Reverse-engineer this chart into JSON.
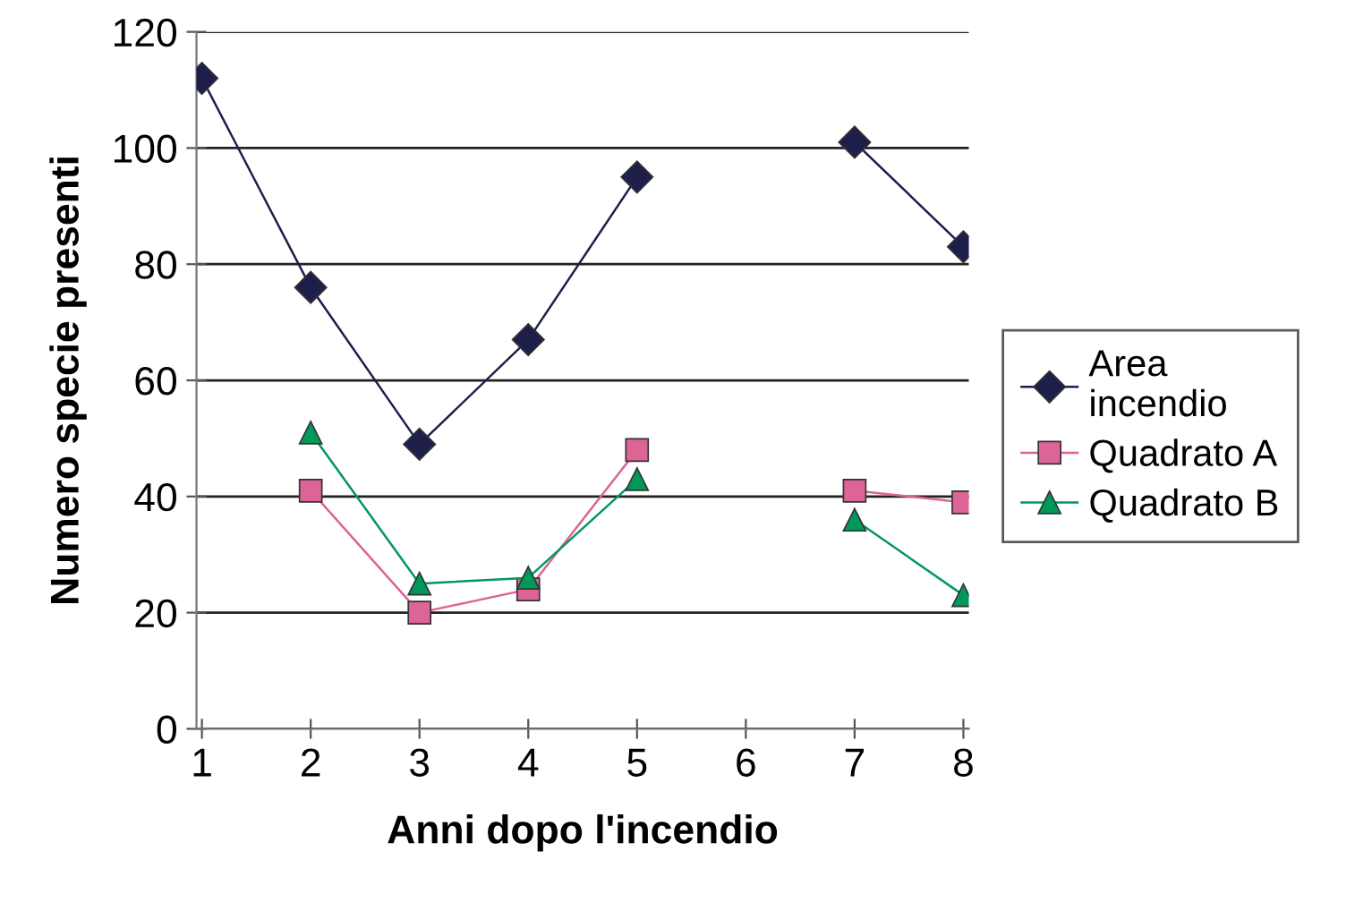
{
  "chart_data": {
    "type": "line",
    "xlabel": "Anni dopo l'incendio",
    "ylabel": "Numero specie presenti",
    "categories": [
      "1",
      "2",
      "3",
      "4",
      "5",
      "6",
      "7",
      "8"
    ],
    "series": [
      {
        "name": "Area\nincendio",
        "color": "#1e1e4a",
        "marker": "diamond",
        "values": [
          112,
          76,
          49,
          67,
          95,
          null,
          101,
          83
        ]
      },
      {
        "name": "Quadrato A",
        "color": "#dc6496",
        "marker": "square",
        "values": [
          null,
          41,
          20,
          24,
          48,
          null,
          41,
          39
        ]
      },
      {
        "name": "Quadrato B",
        "color": "#00995a",
        "marker": "triangle",
        "values": [
          null,
          51,
          25,
          26,
          43,
          null,
          36,
          23
        ]
      }
    ],
    "ylim": [
      0,
      120
    ],
    "yticks": [
      0,
      20,
      40,
      60,
      80,
      100,
      120
    ],
    "grid": "y",
    "legend": "right"
  }
}
